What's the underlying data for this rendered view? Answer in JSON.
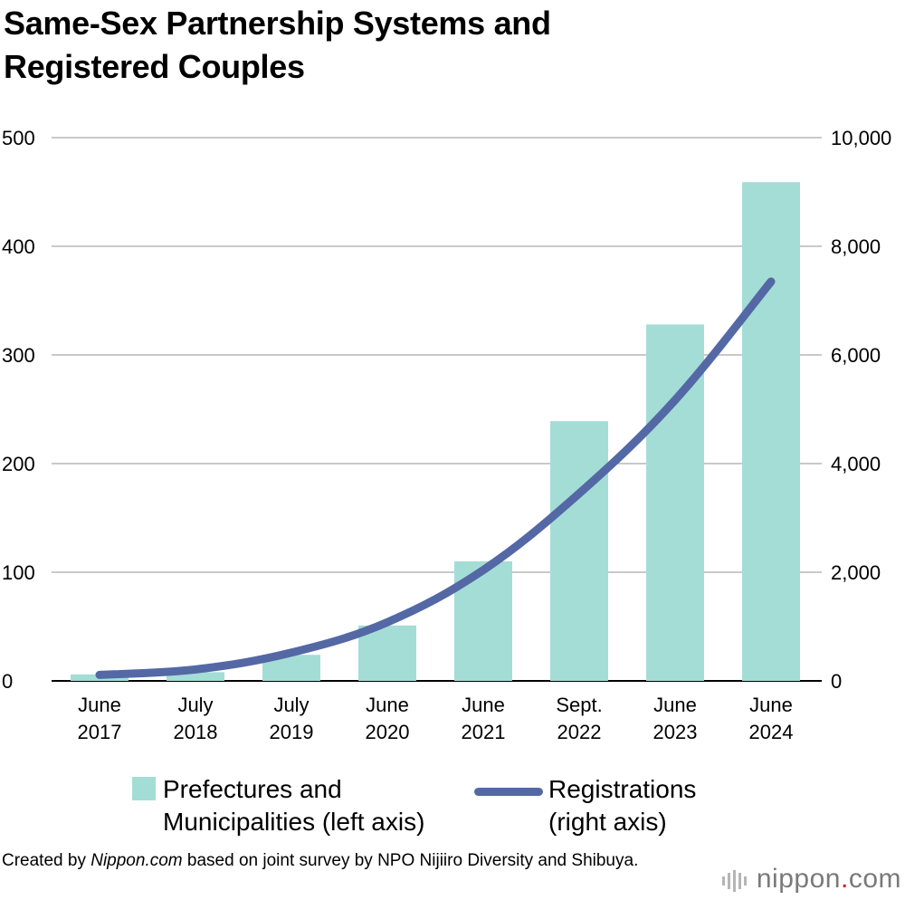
{
  "title_lines": [
    "Same-Sex Partnership Systems and",
    "Registered Couples"
  ],
  "colors": {
    "bars": "#a4ddd5",
    "line": "#5468a5",
    "grid": "#c9c9c9"
  },
  "chart_data": {
    "type": "bar",
    "title": "Same-Sex Partnership Systems and Registered Couples",
    "categories": [
      [
        "June",
        "2017"
      ],
      [
        "July",
        "2018"
      ],
      [
        "July",
        "2019"
      ],
      [
        "June",
        "2020"
      ],
      [
        "June",
        "2021"
      ],
      [
        "Sept.",
        "2022"
      ],
      [
        "June",
        "2023"
      ],
      [
        "June",
        "2024"
      ]
    ],
    "series": [
      {
        "name": "Prefectures and Municipalities (left axis)",
        "type": "bar",
        "axis": "left",
        "values": [
          6,
          8,
          24,
          51,
          110,
          239,
          328,
          459
        ]
      },
      {
        "name": "Registrations (right axis)",
        "type": "line",
        "axis": "right",
        "values": [
          110,
          210,
          520,
          1080,
          2040,
          3450,
          5170,
          7350
        ]
      }
    ],
    "left_axis": {
      "ylim": [
        0,
        500
      ],
      "ticks": [
        "0",
        "100",
        "200",
        "300",
        "400",
        "500"
      ]
    },
    "right_axis": {
      "ylim": [
        0,
        10000
      ],
      "ticks": [
        "0",
        "2,000",
        "4,000",
        "6,000",
        "8,000",
        "10,000"
      ]
    },
    "grid": true,
    "legend": "bottom"
  },
  "legend": {
    "bar_label": [
      "Prefectures and",
      "Municipalities (left axis)"
    ],
    "line_label": [
      "Registrations",
      "(right axis)"
    ]
  },
  "source": {
    "prefix": "Created by ",
    "site": "Nippon.com",
    "suffix": " based on joint survey by NPO Nijiiro Diversity and Shibuya."
  },
  "logo": {
    "text_main": "nippon",
    "text_dot": ".",
    "text_end": "com"
  }
}
